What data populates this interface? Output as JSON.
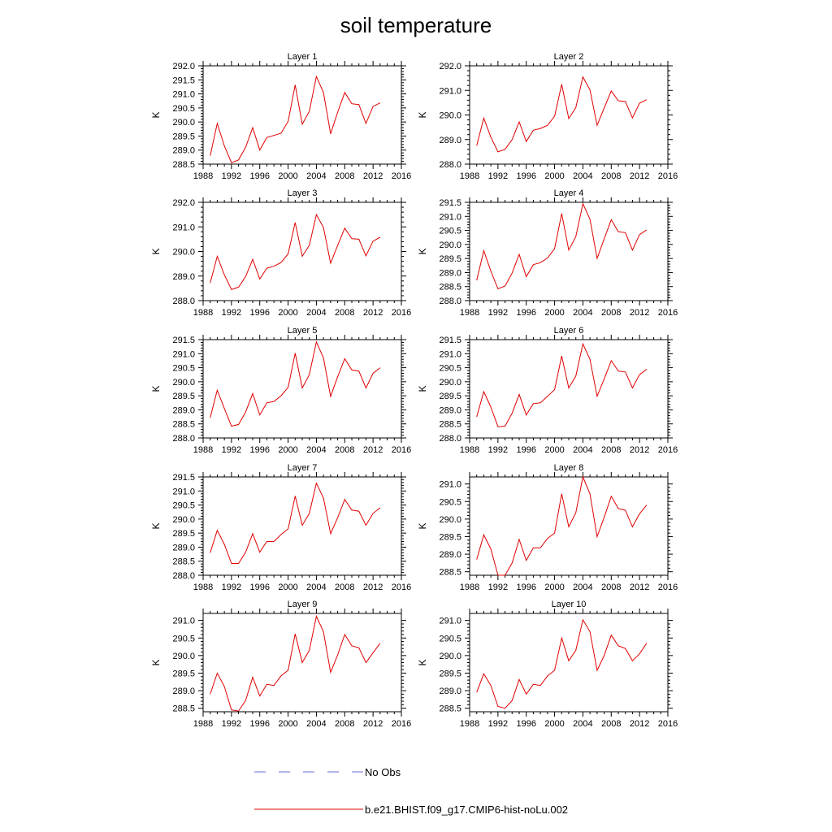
{
  "figure": {
    "title": "soil temperature",
    "legend": [
      {
        "label": "No Obs",
        "color": "#6a6ad8",
        "style": "dashed"
      },
      {
        "label": "b.e21.BHIST.f09_g17.CMIP6-hist-noLu.002",
        "color": "#e00000",
        "style": "solid"
      }
    ]
  },
  "chart_data": [
    {
      "type": "line",
      "title": "Layer 1",
      "ylabel": "K",
      "xlim": [
        1988,
        2016
      ],
      "ylim": [
        288.5,
        292.0
      ],
      "xticks": [
        "1988",
        "1992",
        "1996",
        "2000",
        "2004",
        "2008",
        "2012",
        "2016"
      ],
      "yticks": [
        "288.5",
        "289.0",
        "289.5",
        "290.0",
        "290.5",
        "291.0",
        "291.5",
        "292.0"
      ],
      "x": [
        1989,
        1990,
        1991,
        1992,
        1993,
        1994,
        1995,
        1996,
        1997,
        1998,
        1999,
        2000,
        2001,
        2002,
        2003,
        2004,
        2005,
        2006,
        2007,
        2008,
        2009,
        2010,
        2011,
        2012,
        2013
      ],
      "series": [
        {
          "name": "b.e21.BHIST.f09_g17.CMIP6-hist-noLu.002",
          "color": "#e00000",
          "values": [
            288.8,
            289.95,
            289.15,
            288.55,
            288.65,
            289.1,
            289.8,
            289.0,
            289.45,
            289.52,
            289.6,
            290.02,
            291.32,
            289.92,
            290.38,
            291.62,
            291.05,
            289.58,
            290.35,
            291.05,
            290.65,
            290.62,
            289.95,
            290.55,
            290.68
          ]
        }
      ]
    },
    {
      "type": "line",
      "title": "Layer 2",
      "ylabel": "K",
      "xlim": [
        1988,
        2016
      ],
      "ylim": [
        288.0,
        292.0
      ],
      "xticks": [
        "1988",
        "1992",
        "1996",
        "2000",
        "2004",
        "2008",
        "2012",
        "2016"
      ],
      "yticks": [
        "288.0",
        "289.0",
        "290.0",
        "291.0",
        "292.0"
      ],
      "x": [
        1989,
        1990,
        1991,
        1992,
        1993,
        1994,
        1995,
        1996,
        1997,
        1998,
        1999,
        2000,
        2001,
        2002,
        2003,
        2004,
        2005,
        2006,
        2007,
        2008,
        2009,
        2010,
        2011,
        2012,
        2013
      ],
      "series": [
        {
          "name": "b.e21.BHIST.f09_g17.CMIP6-hist-noLu.002",
          "color": "#e00000",
          "values": [
            288.75,
            289.87,
            289.1,
            288.5,
            288.6,
            289.0,
            289.72,
            288.92,
            289.38,
            289.45,
            289.58,
            289.95,
            291.25,
            289.85,
            290.3,
            291.55,
            291.02,
            289.58,
            290.28,
            290.98,
            290.58,
            290.55,
            289.88,
            290.48,
            290.62
          ]
        }
      ]
    },
    {
      "type": "line",
      "title": "Layer 3",
      "ylabel": "K",
      "xlim": [
        1988,
        2016
      ],
      "ylim": [
        288.0,
        292.0
      ],
      "xticks": [
        "1988",
        "1992",
        "1996",
        "2000",
        "2004",
        "2008",
        "2012",
        "2016"
      ],
      "yticks": [
        "288.0",
        "289.0",
        "290.0",
        "291.0",
        "292.0"
      ],
      "x": [
        1989,
        1990,
        1991,
        1992,
        1993,
        1994,
        1995,
        1996,
        1997,
        1998,
        1999,
        2000,
        2001,
        2002,
        2003,
        2004,
        2005,
        2006,
        2007,
        2008,
        2009,
        2010,
        2011,
        2012,
        2013
      ],
      "series": [
        {
          "name": "b.e21.BHIST.f09_g17.CMIP6-hist-noLu.002",
          "color": "#e00000",
          "values": [
            288.72,
            289.8,
            289.05,
            288.45,
            288.55,
            288.98,
            289.68,
            288.88,
            289.32,
            289.4,
            289.55,
            289.9,
            291.18,
            289.8,
            290.25,
            291.5,
            290.98,
            289.52,
            290.25,
            290.95,
            290.52,
            290.5,
            289.82,
            290.42,
            290.58
          ]
        }
      ]
    },
    {
      "type": "line",
      "title": "Layer 4",
      "ylabel": "K",
      "xlim": [
        1988,
        2016
      ],
      "ylim": [
        288.0,
        291.5
      ],
      "xticks": [
        "1988",
        "1992",
        "1996",
        "2000",
        "2004",
        "2008",
        "2012",
        "2016"
      ],
      "yticks": [
        "288.0",
        "288.5",
        "289.0",
        "289.5",
        "290.0",
        "290.5",
        "291.0",
        "291.5"
      ],
      "x": [
        1989,
        1990,
        1991,
        1992,
        1993,
        1994,
        1995,
        1996,
        1997,
        1998,
        1999,
        2000,
        2001,
        2002,
        2003,
        2004,
        2005,
        2006,
        2007,
        2008,
        2009,
        2010,
        2011,
        2012,
        2013
      ],
      "series": [
        {
          "name": "b.e21.BHIST.f09_g17.CMIP6-hist-noLu.002",
          "color": "#e00000",
          "values": [
            288.72,
            289.78,
            289.05,
            288.42,
            288.52,
            288.98,
            289.65,
            288.85,
            289.28,
            289.35,
            289.52,
            289.85,
            291.1,
            289.8,
            290.28,
            291.45,
            290.9,
            289.5,
            290.2,
            290.88,
            290.45,
            290.42,
            289.8,
            290.35,
            290.52
          ]
        }
      ]
    },
    {
      "type": "line",
      "title": "Layer 5",
      "ylabel": "K",
      "xlim": [
        1988,
        2016
      ],
      "ylim": [
        288.0,
        291.5
      ],
      "xticks": [
        "1988",
        "1992",
        "1996",
        "2000",
        "2004",
        "2008",
        "2012",
        "2016"
      ],
      "yticks": [
        "288.0",
        "288.5",
        "289.0",
        "289.5",
        "290.0",
        "290.5",
        "291.0",
        "291.5"
      ],
      "x": [
        1989,
        1990,
        1991,
        1992,
        1993,
        1994,
        1995,
        1996,
        1997,
        1998,
        1999,
        2000,
        2001,
        2002,
        2003,
        2004,
        2005,
        2006,
        2007,
        2008,
        2009,
        2010,
        2011,
        2012,
        2013
      ],
      "series": [
        {
          "name": "b.e21.BHIST.f09_g17.CMIP6-hist-noLu.002",
          "color": "#e00000",
          "values": [
            288.72,
            289.7,
            289.05,
            288.42,
            288.48,
            288.92,
            289.58,
            288.82,
            289.25,
            289.3,
            289.5,
            289.8,
            291.02,
            289.78,
            290.25,
            291.42,
            290.85,
            289.48,
            290.18,
            290.82,
            290.42,
            290.38,
            289.78,
            290.3,
            290.5
          ]
        }
      ]
    },
    {
      "type": "line",
      "title": "Layer 6",
      "ylabel": "K",
      "xlim": [
        1988,
        2016
      ],
      "ylim": [
        288.0,
        291.5
      ],
      "xticks": [
        "1988",
        "1992",
        "1996",
        "2000",
        "2004",
        "2008",
        "2012",
        "2016"
      ],
      "yticks": [
        "288.0",
        "288.5",
        "289.0",
        "289.5",
        "290.0",
        "290.5",
        "291.0",
        "291.5"
      ],
      "x": [
        1989,
        1990,
        1991,
        1992,
        1993,
        1994,
        1995,
        1996,
        1997,
        1998,
        1999,
        2000,
        2001,
        2002,
        2003,
        2004,
        2005,
        2006,
        2007,
        2008,
        2009,
        2010,
        2011,
        2012,
        2013
      ],
      "series": [
        {
          "name": "b.e21.BHIST.f09_g17.CMIP6-hist-noLu.002",
          "color": "#e00000",
          "values": [
            288.75,
            289.65,
            289.1,
            288.4,
            288.42,
            288.88,
            289.55,
            288.82,
            289.22,
            289.25,
            289.48,
            289.72,
            290.92,
            289.78,
            290.2,
            291.35,
            290.8,
            289.48,
            290.1,
            290.75,
            290.38,
            290.35,
            289.78,
            290.25,
            290.45
          ]
        }
      ]
    },
    {
      "type": "line",
      "title": "Layer 7",
      "ylabel": "K",
      "xlim": [
        1988,
        2016
      ],
      "ylim": [
        288.0,
        291.5
      ],
      "xticks": [
        "1988",
        "1992",
        "1996",
        "2000",
        "2004",
        "2008",
        "2012",
        "2016"
      ],
      "yticks": [
        "288.0",
        "288.5",
        "289.0",
        "289.5",
        "290.0",
        "290.5",
        "291.0",
        "291.5"
      ],
      "x": [
        1989,
        1990,
        1991,
        1992,
        1993,
        1994,
        1995,
        1996,
        1997,
        1998,
        1999,
        2000,
        2001,
        2002,
        2003,
        2004,
        2005,
        2006,
        2007,
        2008,
        2009,
        2010,
        2011,
        2012,
        2013
      ],
      "series": [
        {
          "name": "b.e21.BHIST.f09_g17.CMIP6-hist-noLu.002",
          "color": "#e00000",
          "values": [
            288.8,
            289.6,
            289.1,
            288.42,
            288.42,
            288.82,
            289.48,
            288.82,
            289.2,
            289.2,
            289.45,
            289.65,
            290.82,
            289.78,
            290.2,
            291.28,
            290.75,
            289.48,
            290.05,
            290.7,
            290.32,
            290.28,
            289.78,
            290.2,
            290.4
          ]
        }
      ]
    },
    {
      "type": "line",
      "title": "Layer 8",
      "ylabel": "K",
      "xlim": [
        1988,
        2016
      ],
      "ylim": [
        288.4,
        291.2
      ],
      "xticks": [
        "1988",
        "1992",
        "1996",
        "2000",
        "2004",
        "2008",
        "2012",
        "2016"
      ],
      "yticks": [
        "288.5",
        "289.0",
        "289.5",
        "290.0",
        "290.5",
        "291.0"
      ],
      "x": [
        1989,
        1990,
        1991,
        1992,
        1993,
        1994,
        1995,
        1996,
        1997,
        1998,
        1999,
        2000,
        2001,
        2002,
        2003,
        2004,
        2005,
        2006,
        2007,
        2008,
        2009,
        2010,
        2011,
        2012,
        2013
      ],
      "series": [
        {
          "name": "b.e21.BHIST.f09_g17.CMIP6-hist-noLu.002",
          "color": "#e00000",
          "values": [
            288.85,
            289.55,
            289.15,
            288.4,
            288.4,
            288.75,
            289.42,
            288.82,
            289.18,
            289.18,
            289.45,
            289.6,
            290.72,
            289.78,
            290.18,
            291.2,
            290.72,
            289.5,
            290.05,
            290.65,
            290.3,
            290.25,
            289.78,
            290.15,
            290.4
          ]
        }
      ]
    },
    {
      "type": "line",
      "title": "Layer 9",
      "ylabel": "K",
      "xlim": [
        1988,
        2016
      ],
      "ylim": [
        288.4,
        291.2
      ],
      "xticks": [
        "1988",
        "1992",
        "1996",
        "2000",
        "2004",
        "2008",
        "2012",
        "2016"
      ],
      "yticks": [
        "288.5",
        "289.0",
        "289.5",
        "290.0",
        "290.5",
        "291.0"
      ],
      "x": [
        1989,
        1990,
        1991,
        1992,
        1993,
        1994,
        1995,
        1996,
        1997,
        1998,
        1999,
        2000,
        2001,
        2002,
        2003,
        2004,
        2005,
        2006,
        2007,
        2008,
        2009,
        2010,
        2011,
        2012,
        2013
      ],
      "series": [
        {
          "name": "b.e21.BHIST.f09_g17.CMIP6-hist-noLu.002",
          "color": "#e00000",
          "values": [
            288.9,
            289.5,
            289.12,
            288.45,
            288.42,
            288.72,
            289.38,
            288.85,
            289.18,
            289.15,
            289.42,
            289.58,
            290.62,
            289.8,
            290.15,
            291.12,
            290.68,
            289.52,
            290.02,
            290.6,
            290.28,
            290.22,
            289.8,
            290.08,
            290.35
          ]
        }
      ]
    },
    {
      "type": "line",
      "title": "Layer 10",
      "ylabel": "K",
      "xlim": [
        1988,
        2016
      ],
      "ylim": [
        288.4,
        291.2
      ],
      "xticks": [
        "1988",
        "1992",
        "1996",
        "2000",
        "2004",
        "2008",
        "2012",
        "2016"
      ],
      "yticks": [
        "288.5",
        "289.0",
        "289.5",
        "290.0",
        "290.5",
        "291.0"
      ],
      "x": [
        1989,
        1990,
        1991,
        1992,
        1993,
        1994,
        1995,
        1996,
        1997,
        1998,
        1999,
        2000,
        2001,
        2002,
        2003,
        2004,
        2005,
        2006,
        2007,
        2008,
        2009,
        2010,
        2011,
        2012,
        2013
      ],
      "series": [
        {
          "name": "b.e21.BHIST.f09_g17.CMIP6-hist-noLu.002",
          "color": "#e00000",
          "values": [
            288.95,
            289.48,
            289.15,
            288.55,
            288.5,
            288.72,
            289.32,
            288.9,
            289.18,
            289.15,
            289.42,
            289.58,
            290.5,
            289.85,
            290.15,
            291.02,
            290.68,
            289.58,
            290.0,
            290.58,
            290.28,
            290.2,
            289.85,
            290.05,
            290.35
          ]
        }
      ]
    }
  ]
}
